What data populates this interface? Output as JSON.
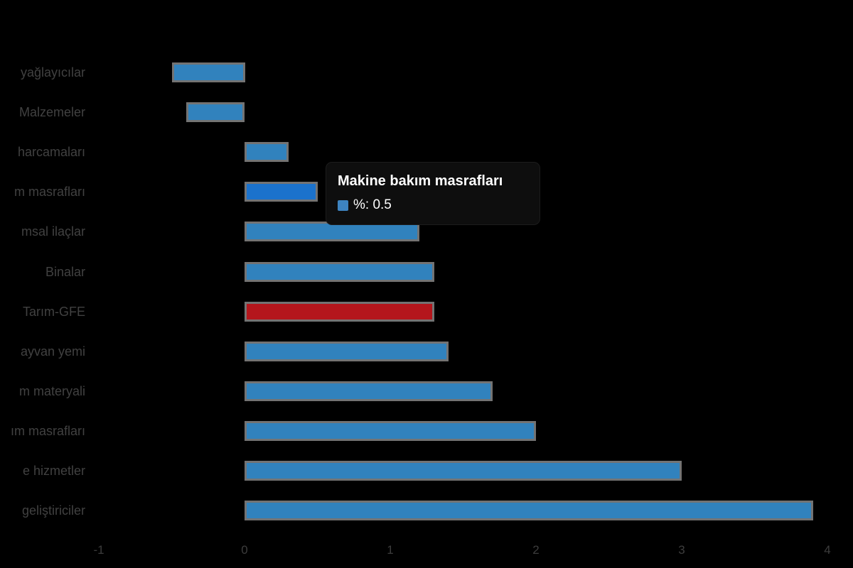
{
  "chart_data": {
    "type": "bar",
    "orientation": "horizontal",
    "title": "",
    "xlabel": "",
    "ylabel": "",
    "x_ticks": [
      -1,
      0,
      1,
      2,
      3,
      4
    ],
    "xlim": [
      -1.2,
      4.2
    ],
    "grid": false,
    "legend": false,
    "unit": "%",
    "items": [
      {
        "label": "yağlayıcılar",
        "value": -0.5,
        "state": "normal"
      },
      {
        "label": "Malzemeler",
        "value": -0.4,
        "state": "normal"
      },
      {
        "label": "harcamaları",
        "value": 0.3,
        "state": "normal"
      },
      {
        "label": "m masrafları",
        "value": 0.5,
        "state": "hovered"
      },
      {
        "label": "msal ilaçlar",
        "value": 1.2,
        "state": "normal"
      },
      {
        "label": "Binalar",
        "value": 1.3,
        "state": "normal"
      },
      {
        "label": "Tarım-GFE",
        "value": 1.3,
        "state": "highlight-red"
      },
      {
        "label": "ayvan yemi",
        "value": 1.4,
        "state": "normal"
      },
      {
        "label": "m materyali",
        "value": 1.7,
        "state": "normal"
      },
      {
        "label": "ım masrafları",
        "value": 2.0,
        "state": "normal"
      },
      {
        "label": "e hizmetler",
        "value": 3.0,
        "state": "normal"
      },
      {
        "label": "geliştiriciler",
        "value": 3.9,
        "state": "normal"
      }
    ],
    "colors": {
      "bar_normal": "#3182bd",
      "bar_hovered": "#1b72cc",
      "bar_red": "#b4161c",
      "bar_border": "#737373",
      "label_text": "#414141",
      "tick_text": "#3d3d3d",
      "background": "#000000"
    }
  },
  "tooltip": {
    "title": "Makine bakım masrafları",
    "swatch_color": "#3d83c0",
    "value_label": "%: 0.5"
  }
}
